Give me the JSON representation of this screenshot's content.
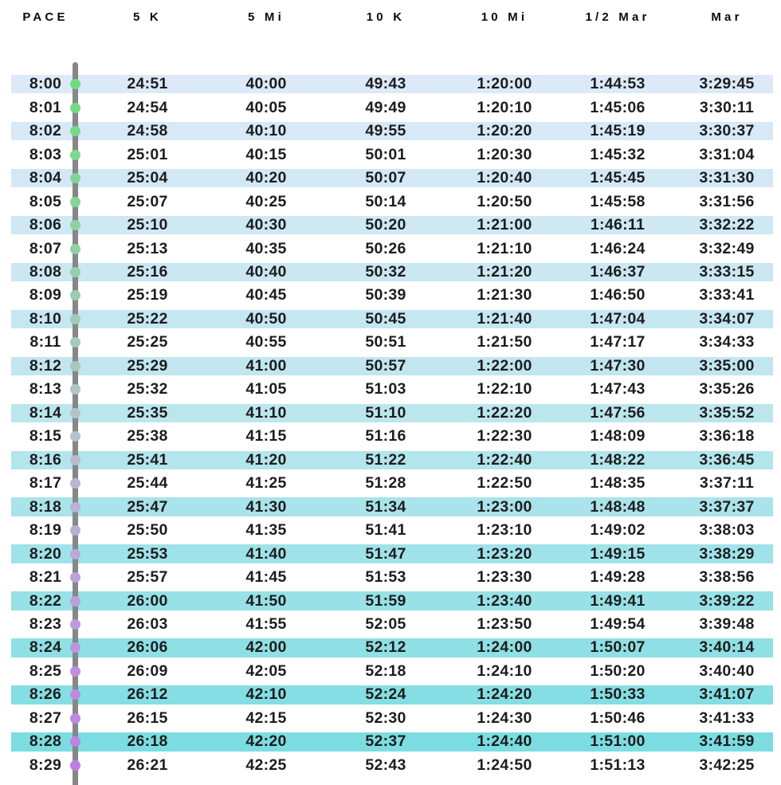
{
  "chart_data": {
    "type": "table",
    "columns": [
      "PACE",
      "5 K",
      "5 Mi",
      "10 K",
      "10 Mi",
      "1/2 Mar",
      "Mar"
    ],
    "rows": [
      [
        "8:00",
        "24:51",
        "40:00",
        "49:43",
        "1:20:00",
        "1:44:53",
        "3:29:45"
      ],
      [
        "8:01",
        "24:54",
        "40:05",
        "49:49",
        "1:20:10",
        "1:45:06",
        "3:30:11"
      ],
      [
        "8:02",
        "24:58",
        "40:10",
        "49:55",
        "1:20:20",
        "1:45:19",
        "3:30:37"
      ],
      [
        "8:03",
        "25:01",
        "40:15",
        "50:01",
        "1:20:30",
        "1:45:32",
        "3:31:04"
      ],
      [
        "8:04",
        "25:04",
        "40:20",
        "50:07",
        "1:20:40",
        "1:45:45",
        "3:31:30"
      ],
      [
        "8:05",
        "25:07",
        "40:25",
        "50:14",
        "1:20:50",
        "1:45:58",
        "3:31:56"
      ],
      [
        "8:06",
        "25:10",
        "40:30",
        "50:20",
        "1:21:00",
        "1:46:11",
        "3:32:22"
      ],
      [
        "8:07",
        "25:13",
        "40:35",
        "50:26",
        "1:21:10",
        "1:46:24",
        "3:32:49"
      ],
      [
        "8:08",
        "25:16",
        "40:40",
        "50:32",
        "1:21:20",
        "1:46:37",
        "3:33:15"
      ],
      [
        "8:09",
        "25:19",
        "40:45",
        "50:39",
        "1:21:30",
        "1:46:50",
        "3:33:41"
      ],
      [
        "8:10",
        "25:22",
        "40:50",
        "50:45",
        "1:21:40",
        "1:47:04",
        "3:34:07"
      ],
      [
        "8:11",
        "25:25",
        "40:55",
        "50:51",
        "1:21:50",
        "1:47:17",
        "3:34:33"
      ],
      [
        "8:12",
        "25:29",
        "41:00",
        "50:57",
        "1:22:00",
        "1:47:30",
        "3:35:00"
      ],
      [
        "8:13",
        "25:32",
        "41:05",
        "51:03",
        "1:22:10",
        "1:47:43",
        "3:35:26"
      ],
      [
        "8:14",
        "25:35",
        "41:10",
        "51:10",
        "1:22:20",
        "1:47:56",
        "3:35:52"
      ],
      [
        "8:15",
        "25:38",
        "41:15",
        "51:16",
        "1:22:30",
        "1:48:09",
        "3:36:18"
      ],
      [
        "8:16",
        "25:41",
        "41:20",
        "51:22",
        "1:22:40",
        "1:48:22",
        "3:36:45"
      ],
      [
        "8:17",
        "25:44",
        "41:25",
        "51:28",
        "1:22:50",
        "1:48:35",
        "3:37:11"
      ],
      [
        "8:18",
        "25:47",
        "41:30",
        "51:34",
        "1:23:00",
        "1:48:48",
        "3:37:37"
      ],
      [
        "8:19",
        "25:50",
        "41:35",
        "51:41",
        "1:23:10",
        "1:49:02",
        "3:38:03"
      ],
      [
        "8:20",
        "25:53",
        "41:40",
        "51:47",
        "1:23:20",
        "1:49:15",
        "3:38:29"
      ],
      [
        "8:21",
        "25:57",
        "41:45",
        "51:53",
        "1:23:30",
        "1:49:28",
        "3:38:56"
      ],
      [
        "8:22",
        "26:00",
        "41:50",
        "51:59",
        "1:23:40",
        "1:49:41",
        "3:39:22"
      ],
      [
        "8:23",
        "26:03",
        "41:55",
        "52:05",
        "1:23:50",
        "1:49:54",
        "3:39:48"
      ],
      [
        "8:24",
        "26:06",
        "42:00",
        "52:12",
        "1:24:00",
        "1:50:07",
        "3:40:14"
      ],
      [
        "8:25",
        "26:09",
        "42:05",
        "52:18",
        "1:24:10",
        "1:50:20",
        "3:40:40"
      ],
      [
        "8:26",
        "26:12",
        "42:10",
        "52:24",
        "1:24:20",
        "1:50:33",
        "3:41:07"
      ],
      [
        "8:27",
        "26:15",
        "42:15",
        "52:30",
        "1:24:30",
        "1:50:46",
        "3:41:33"
      ],
      [
        "8:28",
        "26:18",
        "42:20",
        "52:37",
        "1:24:40",
        "1:51:00",
        "3:41:59"
      ],
      [
        "8:29",
        "26:21",
        "42:25",
        "52:43",
        "1:24:50",
        "1:51:13",
        "3:42:25"
      ]
    ]
  },
  "colors": {
    "stripe_start": "#dce9f8",
    "stripe_mid": "#bce6ee",
    "stripe_end": "#7bdde2",
    "dot_start": "#6edd80",
    "dot_mid": "#b6c3cd",
    "dot_end": "#c07de9",
    "timeline": "#878787",
    "value_text": "#1d1d1d",
    "header_text": "#0b0b0b"
  }
}
